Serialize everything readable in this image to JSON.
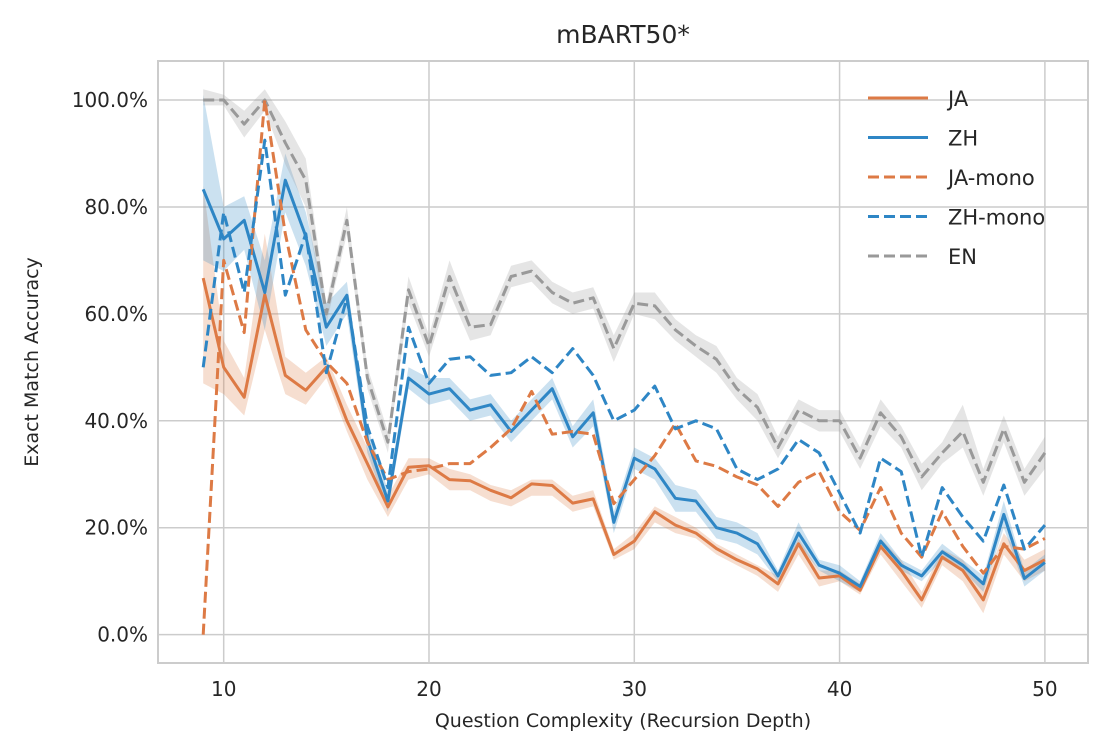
{
  "chart_data": {
    "type": "line",
    "title": "mBART50*",
    "xlabel": "Question Complexity (Recursion Depth)",
    "ylabel": "Exact Match Accuracy",
    "xlim": [
      6.8,
      52.1
    ],
    "ylim": [
      -5.3,
      107.3
    ],
    "xticks": [
      10,
      20,
      30,
      40,
      50
    ],
    "xtick_labels": [
      "10",
      "20",
      "30",
      "40",
      "50"
    ],
    "yticks": [
      0,
      20,
      40,
      60,
      80,
      100
    ],
    "ytick_labels": [
      "0.0%",
      "20.0%",
      "40.0%",
      "60.0%",
      "80.0%",
      "100.0%"
    ],
    "grid": true,
    "legend_position": "top-right",
    "x": [
      9,
      10,
      11,
      12,
      13,
      14,
      15,
      16,
      17,
      18,
      19,
      20,
      21,
      22,
      23,
      24,
      25,
      26,
      27,
      28,
      29,
      30,
      31,
      32,
      33,
      34,
      35,
      36,
      37,
      38,
      39,
      40,
      41,
      42,
      43,
      44,
      45,
      46,
      47,
      48,
      49,
      50
    ],
    "series": [
      {
        "name": "JA",
        "color": "#dd7a45",
        "style": "solid",
        "values": [
          66.7,
          50,
          44.4,
          63.6,
          48.5,
          45.7,
          50,
          40,
          32,
          23.9,
          31.3,
          31.6,
          29,
          28.8,
          27,
          25.6,
          28.2,
          27.9,
          24.6,
          25.4,
          15,
          17.5,
          23,
          20.5,
          19,
          16.1,
          14,
          12.3,
          9.5,
          17,
          10.6,
          11,
          8.3,
          16.5,
          12,
          6.5,
          14.5,
          12,
          6.5,
          17,
          12,
          14
        ],
        "band": [
          [
            47,
            84
          ],
          [
            45,
            55
          ],
          [
            41,
            48
          ],
          [
            57,
            75
          ],
          [
            45,
            52
          ],
          [
            43,
            49
          ],
          [
            48,
            52
          ],
          [
            38,
            43
          ],
          [
            29,
            35
          ],
          [
            22,
            26
          ],
          [
            29,
            33
          ],
          [
            30,
            33
          ],
          [
            27,
            31
          ],
          [
            27,
            30
          ],
          [
            25,
            28
          ],
          [
            24,
            27
          ],
          [
            26,
            29
          ],
          [
            26,
            29
          ],
          [
            23,
            26
          ],
          [
            24,
            27
          ],
          [
            14,
            16
          ],
          [
            16,
            19
          ],
          [
            21,
            24
          ],
          [
            19,
            22
          ],
          [
            18,
            20
          ],
          [
            15,
            17
          ],
          [
            13,
            15
          ],
          [
            11,
            13
          ],
          [
            8,
            11
          ],
          [
            15,
            18
          ],
          [
            9,
            12
          ],
          [
            10,
            12
          ],
          [
            7.5,
            9.5
          ],
          [
            15,
            18
          ],
          [
            10,
            14
          ],
          [
            5,
            8
          ],
          [
            13,
            16
          ],
          [
            10,
            14
          ],
          [
            4,
            9
          ],
          [
            15,
            19
          ],
          [
            10,
            14
          ],
          [
            12,
            16
          ]
        ]
      },
      {
        "name": "ZH",
        "color": "#2e86c5",
        "style": "solid",
        "values": [
          83.3,
          74,
          77.5,
          64,
          85,
          74.5,
          57.5,
          63.5,
          36.5,
          25,
          48,
          45,
          46,
          42,
          43,
          38,
          42,
          46,
          37,
          41.5,
          21,
          33,
          31,
          25.5,
          25,
          20,
          19,
          17,
          11,
          19,
          13,
          11.5,
          9,
          17.5,
          13,
          11,
          15.5,
          13,
          9.5,
          22.5,
          10.5,
          13.5
        ],
        "band": [
          [
            70,
            101
          ],
          [
            68,
            80
          ],
          [
            72,
            82
          ],
          [
            57,
            70
          ],
          [
            79,
            90
          ],
          [
            69,
            79
          ],
          [
            54,
            62
          ],
          [
            60,
            66
          ],
          [
            34,
            39
          ],
          [
            23,
            27
          ],
          [
            46,
            50
          ],
          [
            43,
            48
          ],
          [
            44,
            48
          ],
          [
            40,
            44
          ],
          [
            41,
            45
          ],
          [
            36,
            40
          ],
          [
            40,
            44
          ],
          [
            44,
            48
          ],
          [
            35,
            39
          ],
          [
            39,
            44
          ],
          [
            19,
            23
          ],
          [
            31,
            35
          ],
          [
            29,
            33
          ],
          [
            23,
            28
          ],
          [
            23,
            27
          ],
          [
            18,
            22
          ],
          [
            17,
            21
          ],
          [
            15,
            19
          ],
          [
            10,
            12
          ],
          [
            17,
            21
          ],
          [
            12,
            14
          ],
          [
            10,
            13
          ],
          [
            8,
            10
          ],
          [
            16,
            19
          ],
          [
            12,
            14
          ],
          [
            10,
            12
          ],
          [
            14,
            17
          ],
          [
            12,
            14
          ],
          [
            8,
            11
          ],
          [
            20,
            25
          ],
          [
            9,
            12
          ],
          [
            12,
            15
          ]
        ]
      },
      {
        "name": "JA-mono",
        "color": "#dd7a45",
        "style": "dashed",
        "values": [
          0,
          70,
          56.5,
          100,
          75,
          57,
          51,
          47,
          36,
          29,
          30.5,
          31,
          32,
          32,
          35,
          38.5,
          45.5,
          37.5,
          38,
          37.5,
          24.5,
          29,
          33.5,
          39.5,
          32.5,
          31.5,
          29.5,
          28,
          24,
          28.5,
          30.5,
          23,
          19.5,
          27.5,
          19,
          14.5,
          23,
          16.5,
          11.5,
          16.5,
          16,
          18
        ]
      },
      {
        "name": "ZH-mono",
        "color": "#2e86c5",
        "style": "dashed",
        "values": [
          50,
          79,
          64,
          92.5,
          63.5,
          75,
          49,
          63,
          39,
          27.5,
          57.5,
          47,
          51.5,
          52,
          48.5,
          49,
          52,
          49,
          53.5,
          48.5,
          40,
          42,
          46.5,
          38.5,
          40,
          38.5,
          31,
          29,
          31,
          36.5,
          34,
          26.5,
          19,
          33,
          30.5,
          14.5,
          27.5,
          22,
          17.5,
          28,
          16,
          20.5
        ]
      },
      {
        "name": "EN",
        "color": "#999999",
        "style": "dashed",
        "values": [
          100,
          100,
          95.5,
          100,
          92,
          85,
          60,
          77.5,
          48,
          36,
          64.5,
          54,
          67,
          57.5,
          58,
          67,
          68,
          64,
          62,
          63,
          53.5,
          62,
          61.5,
          57,
          54,
          51.5,
          46,
          42.5,
          35,
          42,
          40,
          40,
          33,
          41.5,
          37,
          29.5,
          34,
          38,
          28.5,
          38.5,
          28.5,
          34
        ],
        "band": [
          [
            99,
            102
          ],
          [
            99,
            101
          ],
          [
            93,
            98
          ],
          [
            98,
            102
          ],
          [
            88,
            96
          ],
          [
            80,
            89
          ],
          [
            58,
            62
          ],
          [
            75,
            80
          ],
          [
            46,
            50
          ],
          [
            34,
            38
          ],
          [
            62,
            67
          ],
          [
            52,
            56
          ],
          [
            64,
            70
          ],
          [
            55,
            60
          ],
          [
            56,
            60
          ],
          [
            65,
            69
          ],
          [
            66,
            70
          ],
          [
            62,
            66
          ],
          [
            60,
            64
          ],
          [
            61,
            65
          ],
          [
            51,
            56
          ],
          [
            60,
            64
          ],
          [
            59,
            64
          ],
          [
            55,
            59
          ],
          [
            52,
            56
          ],
          [
            49,
            54
          ],
          [
            44,
            48
          ],
          [
            40,
            45
          ],
          [
            33,
            37
          ],
          [
            40,
            44
          ],
          [
            38,
            42
          ],
          [
            38,
            42
          ],
          [
            31,
            35
          ],
          [
            39,
            44
          ],
          [
            35,
            39
          ],
          [
            27,
            32
          ],
          [
            32,
            36
          ],
          [
            35,
            43
          ],
          [
            26,
            31
          ],
          [
            36,
            41
          ],
          [
            26,
            31
          ],
          [
            31,
            37
          ]
        ]
      }
    ]
  }
}
